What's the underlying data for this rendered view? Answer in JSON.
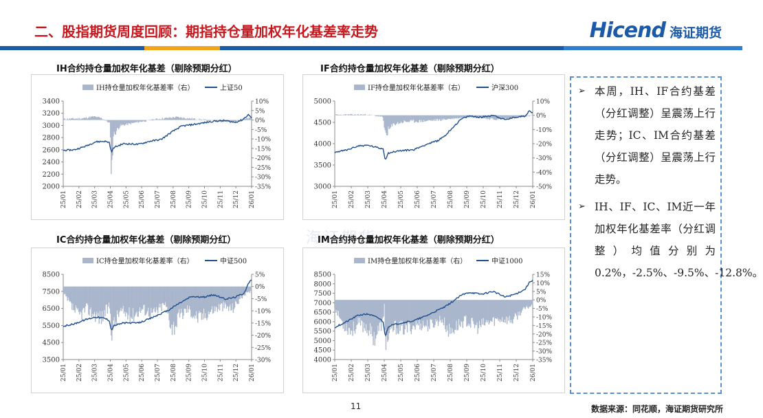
{
  "header": {
    "title": "二、股指期货周度回顾：期指持仓量加权年化基差率走势",
    "logo_en": "Hicend",
    "logo_cn": "海证期货",
    "band_colors": [
      "#1a5aa8",
      "#f2a51a",
      "#1a5aa8",
      "#2e7fd0"
    ]
  },
  "watermark": "海证期货",
  "colors": {
    "bar": "#a9b6cc",
    "line": "#1f4e8c",
    "accent_red": "#c8161d",
    "brand_blue": "#1a5aa8"
  },
  "notes": [
    {
      "bullet": "➢",
      "text": "本周，IH、IF合约基差（分红调整）呈震荡上行走势；IC、IM合约基差（分红调整）呈震荡上行走势。"
    },
    {
      "bullet": "➢",
      "text": "IH、IF、IC、IM近一年加权年化基差率（分红调整）均值分别为0.2%，-2.5%、-9.5%、-12.8%。"
    }
  ],
  "page_number": "11",
  "source": "数据来源：同花顺，海证期货研究所",
  "chart_data": [
    {
      "id": "ih",
      "type": "bar+line",
      "title": "IH合约持仓量加权年化基差（剔除预期分红）",
      "legend": [
        "IH持仓量加权年化基差率（右）",
        "上证50"
      ],
      "x_ticks": [
        "25/01",
        "25/02",
        "25/03",
        "25/04",
        "25/05",
        "25/06",
        "25/07",
        "25/08",
        "25/09",
        "25/10",
        "25/11",
        "25/12",
        "26/01"
      ],
      "left_ticks": [
        "3400",
        "3200",
        "3000",
        "2800",
        "2600",
        "2400",
        "2200",
        "2000"
      ],
      "left_range": [
        2000,
        3400
      ],
      "right_ticks": [
        "10%",
        "5%",
        "0%",
        "-5%",
        "-10%",
        "-15%",
        "-20%",
        "-25%",
        "-30%",
        "-35%"
      ],
      "right_range": [
        -35,
        10
      ],
      "line_keypoints": [
        [
          0,
          2590
        ],
        [
          0.06,
          2600
        ],
        [
          0.12,
          2660
        ],
        [
          0.17,
          2730
        ],
        [
          0.22,
          2740
        ],
        [
          0.245,
          2720
        ],
        [
          0.255,
          2560
        ],
        [
          0.27,
          2640
        ],
        [
          0.32,
          2700
        ],
        [
          0.4,
          2690
        ],
        [
          0.46,
          2740
        ],
        [
          0.52,
          2770
        ],
        [
          0.58,
          2900
        ],
        [
          0.63,
          2990
        ],
        [
          0.68,
          3010
        ],
        [
          0.74,
          3040
        ],
        [
          0.8,
          3070
        ],
        [
          0.86,
          3080
        ],
        [
          0.91,
          3050
        ],
        [
          0.95,
          3090
        ],
        [
          0.985,
          3180
        ],
        [
          1.0,
          3120
        ]
      ],
      "bar_keypoints": [
        [
          0,
          0.5
        ],
        [
          0.1,
          0.8
        ],
        [
          0.16,
          1.8
        ],
        [
          0.2,
          1
        ],
        [
          0.245,
          -1.5
        ],
        [
          0.255,
          -28
        ],
        [
          0.265,
          -8
        ],
        [
          0.3,
          -3
        ],
        [
          0.4,
          -1
        ],
        [
          0.5,
          0.5
        ],
        [
          0.6,
          1.5
        ],
        [
          0.7,
          0.5
        ],
        [
          0.8,
          -0.5
        ],
        [
          0.9,
          -1
        ],
        [
          0.96,
          0.5
        ],
        [
          1.0,
          1
        ]
      ]
    },
    {
      "id": "if",
      "type": "bar+line",
      "title": "IF合约持仓量加权年化基差（剔除预期分红）",
      "legend": [
        "IF持仓量加权年化基差率（右）",
        "沪深300"
      ],
      "x_ticks": [
        "25/01",
        "25/02",
        "25/03",
        "25/04",
        "25/05",
        "25/06",
        "25/07",
        "25/08",
        "25/09",
        "25/10",
        "25/11",
        "25/12",
        "26/01"
      ],
      "left_ticks": [
        "5000",
        "4500",
        "4000",
        "3500",
        "3000"
      ],
      "left_range": [
        3000,
        5000
      ],
      "right_ticks": [
        "10%",
        "0%",
        "-10%",
        "-20%",
        "-30%",
        "-40%",
        "-50%"
      ],
      "right_range": [
        -50,
        10
      ],
      "line_keypoints": [
        [
          0,
          3800
        ],
        [
          0.06,
          3850
        ],
        [
          0.12,
          3950
        ],
        [
          0.17,
          3960
        ],
        [
          0.22,
          3900
        ],
        [
          0.245,
          3880
        ],
        [
          0.255,
          3620
        ],
        [
          0.27,
          3780
        ],
        [
          0.32,
          3830
        ],
        [
          0.4,
          3860
        ],
        [
          0.46,
          3980
        ],
        [
          0.52,
          4070
        ],
        [
          0.56,
          4200
        ],
        [
          0.6,
          4400
        ],
        [
          0.64,
          4580
        ],
        [
          0.68,
          4650
        ],
        [
          0.74,
          4620
        ],
        [
          0.8,
          4670
        ],
        [
          0.86,
          4560
        ],
        [
          0.91,
          4620
        ],
        [
          0.96,
          4650
        ],
        [
          0.985,
          4780
        ],
        [
          1.0,
          4720
        ]
      ],
      "bar_keypoints": [
        [
          0,
          0.3
        ],
        [
          0.15,
          0.5
        ],
        [
          0.24,
          -1
        ],
        [
          0.255,
          -13
        ],
        [
          0.3,
          -6
        ],
        [
          0.35,
          -4.5
        ],
        [
          0.45,
          -4
        ],
        [
          0.55,
          -3
        ],
        [
          0.62,
          -2
        ],
        [
          0.68,
          -1
        ],
        [
          0.75,
          -2
        ],
        [
          0.82,
          -3
        ],
        [
          0.9,
          -2
        ],
        [
          0.96,
          -1
        ],
        [
          1.0,
          0
        ]
      ]
    },
    {
      "id": "ic",
      "type": "bar+line",
      "title": "IC合约持仓量加权年化基差（剔除预期分红）",
      "legend": [
        "IC持仓量加权年化基差率（右）",
        "中证500"
      ],
      "x_ticks": [
        "25/01",
        "25/02",
        "25/03",
        "25/04",
        "25/05",
        "25/06",
        "25/07",
        "25/08",
        "25/09",
        "25/10",
        "25/11",
        "25/12",
        "26/01"
      ],
      "left_ticks": [
        "8500",
        "7500",
        "6500",
        "5500",
        "4500",
        "3500"
      ],
      "left_range": [
        3500,
        8500
      ],
      "right_ticks": [
        "5%",
        "0%",
        "-5%",
        "-10%",
        "-15%",
        "-20%",
        "-25%",
        "-30%"
      ],
      "right_range": [
        -30,
        5
      ],
      "line_keypoints": [
        [
          0,
          5450
        ],
        [
          0.06,
          5600
        ],
        [
          0.12,
          5850
        ],
        [
          0.17,
          6000
        ],
        [
          0.22,
          5920
        ],
        [
          0.245,
          5800
        ],
        [
          0.255,
          5200
        ],
        [
          0.27,
          5500
        ],
        [
          0.32,
          5650
        ],
        [
          0.4,
          5650
        ],
        [
          0.46,
          5900
        ],
        [
          0.52,
          6200
        ],
        [
          0.56,
          6400
        ],
        [
          0.6,
          6700
        ],
        [
          0.64,
          6950
        ],
        [
          0.68,
          7200
        ],
        [
          0.74,
          7150
        ],
        [
          0.8,
          7300
        ],
        [
          0.86,
          7050
        ],
        [
          0.91,
          7150
        ],
        [
          0.96,
          7400
        ],
        [
          0.985,
          8000
        ],
        [
          1.0,
          8200
        ]
      ],
      "bar_keypoints": [
        [
          0,
          -3
        ],
        [
          0.04,
          -8
        ],
        [
          0.08,
          -12
        ],
        [
          0.12,
          -9
        ],
        [
          0.16,
          -11
        ],
        [
          0.2,
          -13
        ],
        [
          0.245,
          -8
        ],
        [
          0.255,
          -18
        ],
        [
          0.3,
          -10
        ],
        [
          0.36,
          -12
        ],
        [
          0.42,
          -9
        ],
        [
          0.48,
          -11
        ],
        [
          0.54,
          -7
        ],
        [
          0.58,
          -17
        ],
        [
          0.62,
          -12
        ],
        [
          0.66,
          -9
        ],
        [
          0.72,
          -13
        ],
        [
          0.78,
          -10
        ],
        [
          0.84,
          -8
        ],
        [
          0.9,
          -9
        ],
        [
          0.95,
          -4
        ],
        [
          1.0,
          -2
        ]
      ]
    },
    {
      "id": "im",
      "type": "bar+line",
      "title": "IM合约持仓量加权年化基差（剔除预期分红）",
      "legend": [
        "IM持仓量加权年化基差率（右）",
        "中证1000"
      ],
      "x_ticks": [
        "25/01",
        "25/02",
        "25/03",
        "25/04",
        "25/05",
        "25/06",
        "25/07",
        "25/08",
        "25/09",
        "25/10",
        "25/11",
        "25/12",
        "26/01"
      ],
      "left_ticks": [
        "8500",
        "8000",
        "7500",
        "7000",
        "6500",
        "6000",
        "5500",
        "5000",
        "4500",
        "4000"
      ],
      "left_range": [
        4000,
        8500
      ],
      "right_ticks": [
        "15%",
        "10%",
        "5%",
        "0%",
        "-5%",
        "-10%",
        "-15%",
        "-20%",
        "-25%",
        "-30%",
        "-35%"
      ],
      "right_range": [
        -35,
        15
      ],
      "line_keypoints": [
        [
          0,
          5700
        ],
        [
          0.06,
          6000
        ],
        [
          0.12,
          6350
        ],
        [
          0.17,
          6400
        ],
        [
          0.22,
          6200
        ],
        [
          0.245,
          6000
        ],
        [
          0.255,
          5200
        ],
        [
          0.27,
          5750
        ],
        [
          0.32,
          5900
        ],
        [
          0.4,
          6050
        ],
        [
          0.46,
          6300
        ],
        [
          0.52,
          6600
        ],
        [
          0.56,
          6800
        ],
        [
          0.6,
          7100
        ],
        [
          0.64,
          7400
        ],
        [
          0.68,
          7550
        ],
        [
          0.74,
          7450
        ],
        [
          0.8,
          7600
        ],
        [
          0.86,
          7300
        ],
        [
          0.91,
          7450
        ],
        [
          0.96,
          7700
        ],
        [
          0.985,
          8100
        ],
        [
          1.0,
          8200
        ]
      ],
      "bar_keypoints": [
        [
          0,
          -5
        ],
        [
          0.04,
          -14
        ],
        [
          0.08,
          -18
        ],
        [
          0.12,
          -14
        ],
        [
          0.16,
          -16
        ],
        [
          0.2,
          -22
        ],
        [
          0.245,
          -12
        ],
        [
          0.25,
          0
        ],
        [
          0.255,
          -25
        ],
        [
          0.3,
          -16
        ],
        [
          0.36,
          -17
        ],
        [
          0.42,
          -14
        ],
        [
          0.48,
          -15
        ],
        [
          0.54,
          -11
        ],
        [
          0.58,
          -19
        ],
        [
          0.62,
          -15
        ],
        [
          0.66,
          -12
        ],
        [
          0.72,
          -16
        ],
        [
          0.78,
          -13
        ],
        [
          0.84,
          -11
        ],
        [
          0.9,
          -12
        ],
        [
          0.95,
          -6
        ],
        [
          1.0,
          -3
        ]
      ]
    }
  ]
}
